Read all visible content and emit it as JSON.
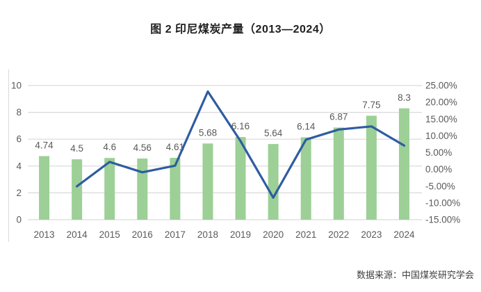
{
  "chart_data": {
    "type": "combo-bar-line",
    "title": "图 2 印尼煤炭产量（2013—2024）",
    "source": "数据来源：中国煤炭研究学会",
    "categories": [
      "2013",
      "2014",
      "2015",
      "2016",
      "2017",
      "2018",
      "2019",
      "2020",
      "2021",
      "2022",
      "2023",
      "2024"
    ],
    "series": [
      {
        "id": "production-bars",
        "type": "bar",
        "axis": "left",
        "color": "#9cd096",
        "values": [
          4.74,
          4.5,
          4.6,
          4.56,
          4.61,
          5.68,
          6.16,
          5.64,
          6.14,
          6.87,
          7.75,
          8.3
        ],
        "labels": [
          "4.74",
          "4.5",
          "4.6",
          "4.56",
          "4.61",
          "5.68",
          "6.16",
          "5.64",
          "6.14",
          "6.87",
          "7.75",
          "8.3"
        ]
      },
      {
        "id": "growth-rate-line",
        "type": "line",
        "axis": "right",
        "color": "#2e5ca1",
        "values": [
          null,
          -5.06,
          2.22,
          -0.87,
          1.1,
          23.21,
          8.45,
          -8.44,
          8.87,
          11.89,
          12.81,
          7.1
        ]
      }
    ],
    "left_axis": {
      "min": 0,
      "max": 10,
      "ticks": [
        "0",
        "2",
        "4",
        "6",
        "8",
        "10"
      ]
    },
    "right_axis": {
      "min": -15,
      "max": 25,
      "ticks": [
        "25.00%",
        "20.00%",
        "15.00%",
        "10.00%",
        "5.00%",
        "0.00%",
        "-5.00%",
        "-10.00%",
        "-15.00%"
      ]
    },
    "grid": true,
    "legend": "none",
    "colors": {
      "grid": "#d9d9d9",
      "axis_text": "#595959",
      "bar_label_text": "#595959",
      "title_text": "#1f1f1f",
      "source_text": "#3f3f3f"
    }
  }
}
